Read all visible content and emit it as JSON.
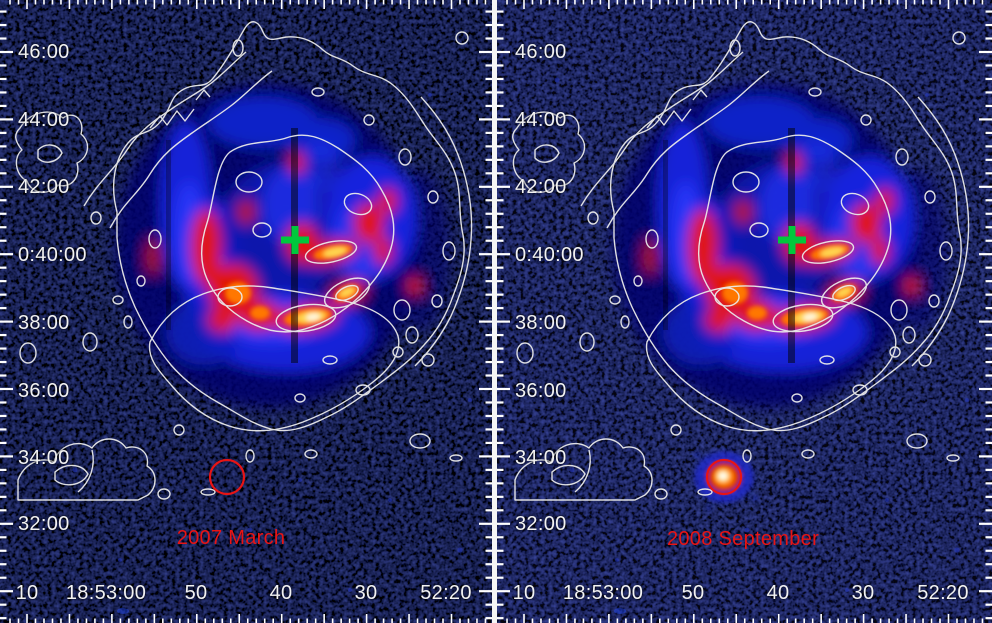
{
  "axes": {
    "dec_labels": [
      "46:00",
      "44:00",
      "42:00",
      "0:40:00",
      "38:00",
      "36:00",
      "34:00",
      "32:00"
    ],
    "ra_labels": [
      "10",
      "18:53:00",
      "50",
      "40",
      "30",
      "52:20"
    ]
  },
  "panels": [
    {
      "id": "left",
      "epoch_label": "2007 March"
    },
    {
      "id": "right",
      "epoch_label": "2008 September"
    }
  ],
  "markers": {
    "cross_icon": "green-cross-position-marker",
    "circle_icon": "red-circle-source-region",
    "transient": "bright-point-source-in-right-panel-only"
  },
  "colors": {
    "background_left": "#000005",
    "background_right": "#05051c",
    "contours": "#eaeaea",
    "axis_text": "#f2f2f2",
    "epoch_text": "#e81414",
    "cross_marker": "#00c83c",
    "circle_marker": "#e81414",
    "xray_faint": "#1322d8",
    "xray_mid": "#e01600",
    "xray_bright": "#ff7700",
    "xray_peak": "#fff6dc"
  }
}
